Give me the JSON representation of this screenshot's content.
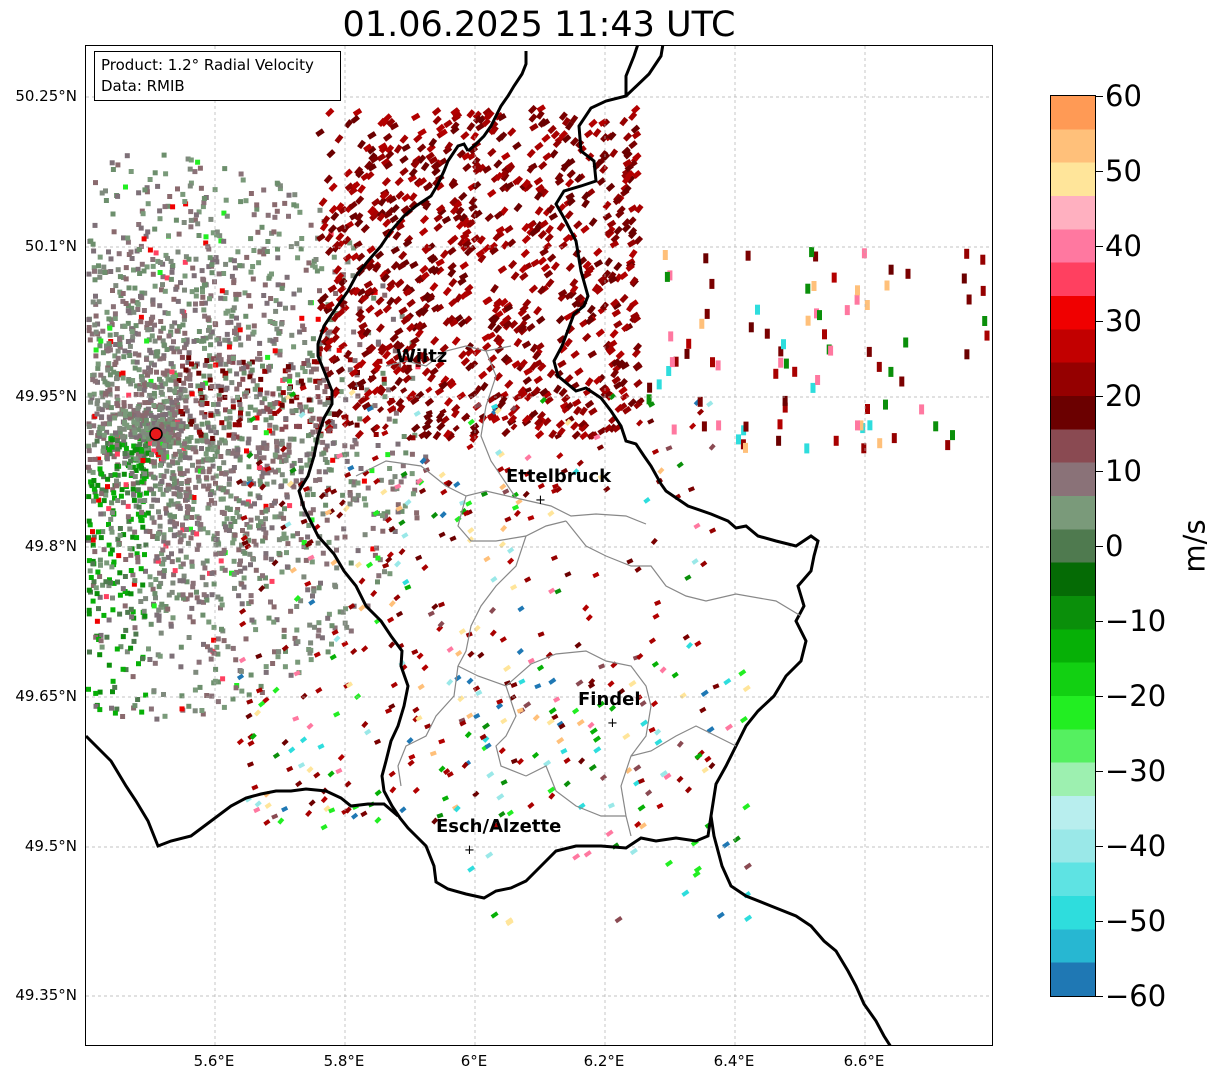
{
  "title": "01.06.2025 11:43 UTC",
  "info_box": {
    "product": "Product: 1.2° Radial Velocity",
    "data": "Data: RMIB"
  },
  "axes": {
    "lat_ticks": [
      "50.25°N",
      "50.1°N",
      "49.95°N",
      "49.8°N",
      "49.65°N",
      "49.5°N",
      "49.35°N"
    ],
    "lon_ticks": [
      "5.6°E",
      "5.8°E",
      "6°E",
      "6.2°E",
      "6.4°E",
      "6.6°E"
    ],
    "grid": true
  },
  "places": [
    {
      "name": "Wiltz",
      "marker": false
    },
    {
      "name": "Ettelbruck",
      "marker": true
    },
    {
      "name": "Findel",
      "marker": true
    },
    {
      "name": "Esch/Alzette",
      "marker": true
    }
  ],
  "radar_site": {
    "color": "#e8191b"
  },
  "colorbar": {
    "label": "m/s",
    "ticks": [
      "60",
      "50",
      "40",
      "30",
      "20",
      "10",
      "0",
      "−10",
      "−20",
      "−30",
      "−40",
      "−50",
      "−60"
    ],
    "range": [
      -60,
      60
    ],
    "colors": [
      "#1f78b4",
      "#27b7d2",
      "#2edddd",
      "#5ee3e3",
      "#9ae8e8",
      "#b8eeee",
      "#9df0b0",
      "#55f060",
      "#22ee22",
      "#12d012",
      "#06b006",
      "#0a8f0a",
      "#056b05",
      "#4f7a4f",
      "#7a9a7a",
      "#8a7278",
      "#8a4a52",
      "#6b0000",
      "#950000",
      "#c20000",
      "#f00000",
      "#ff4060",
      "#ff78a0",
      "#ffb0c0",
      "#ffe59a",
      "#ffc07a",
      "#ff9a55"
    ]
  }
}
